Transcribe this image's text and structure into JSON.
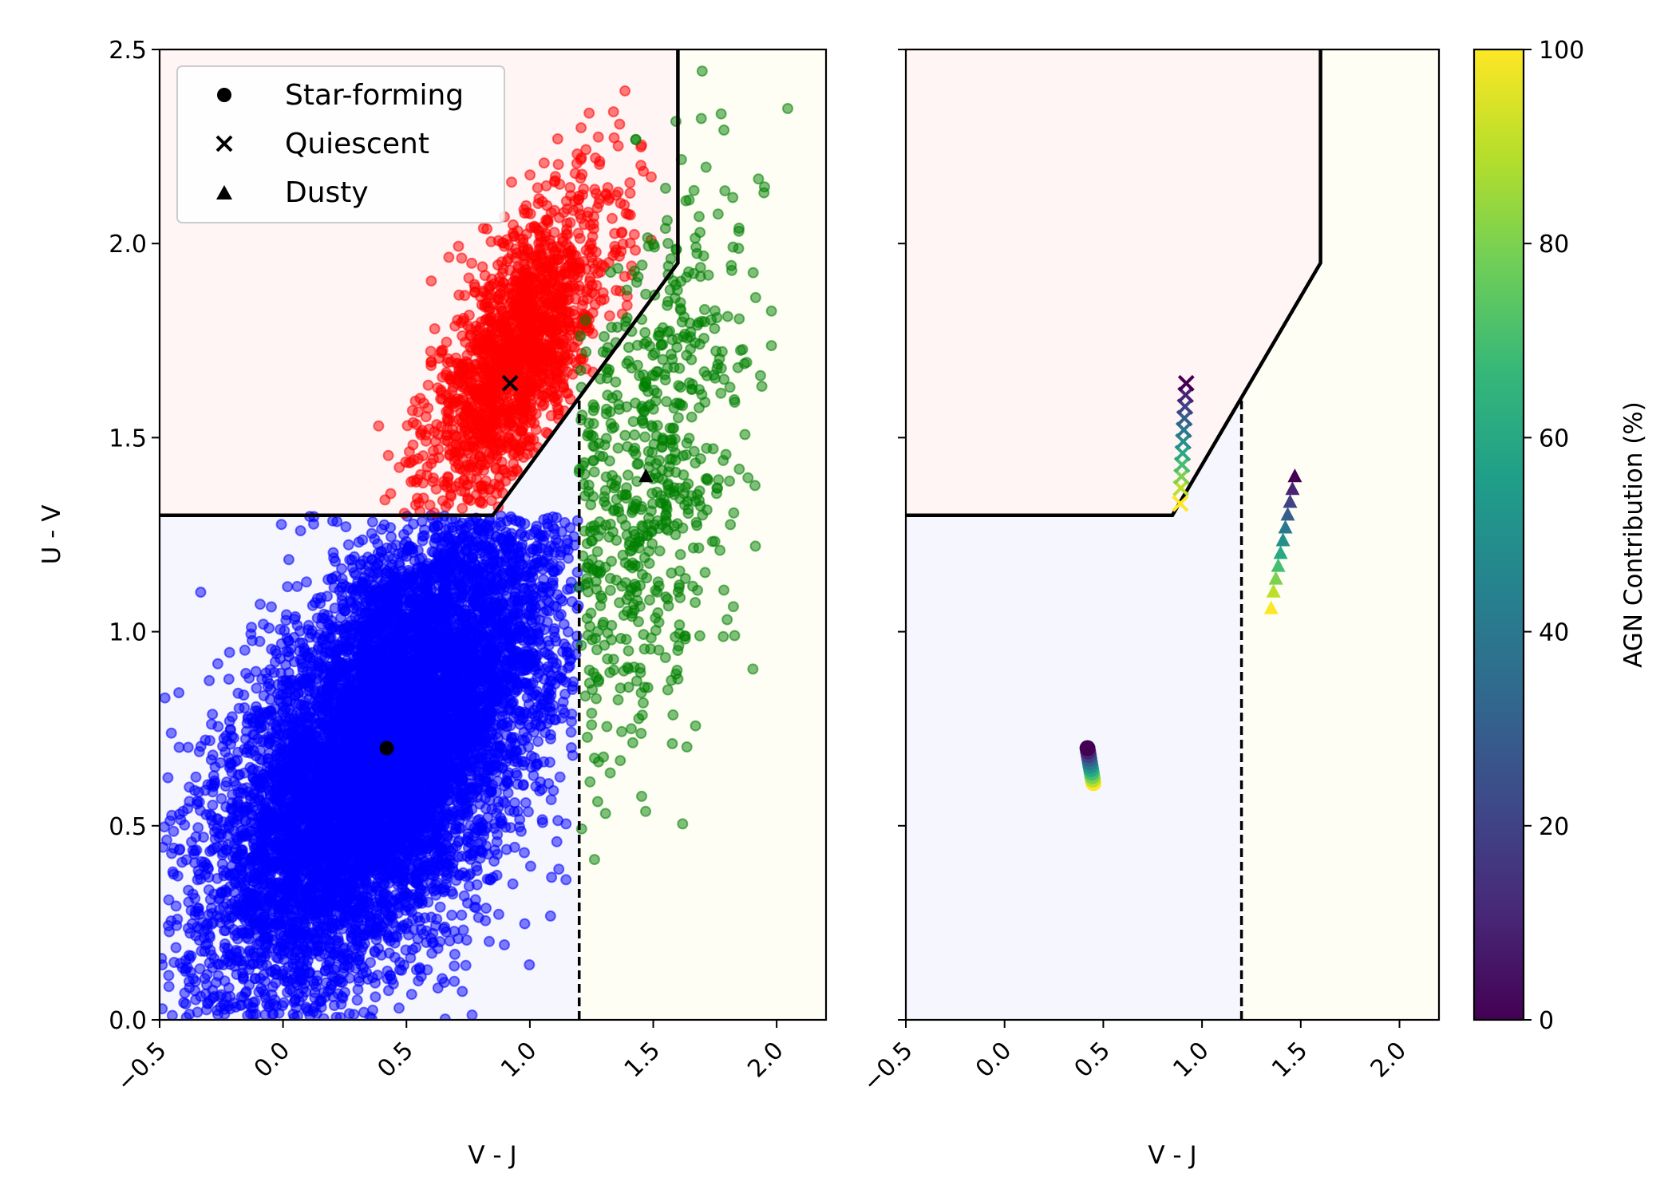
{
  "chart_data": [
    {
      "type": "scatter",
      "panel": "left",
      "xlabel": "V - J",
      "ylabel": "U - V",
      "xlim": [
        -0.5,
        2.2
      ],
      "ylim": [
        0,
        2.5
      ],
      "xticks": [
        "−0.5",
        "0.0",
        "0.5",
        "1.0",
        "1.5",
        "2.0"
      ],
      "xtick_values": [
        -0.5,
        0.0,
        0.5,
        1.0,
        1.5,
        2.0
      ],
      "yticks": [
        "0.0",
        "0.5",
        "1.0",
        "1.5",
        "2.0",
        "2.5"
      ],
      "ytick_values": [
        0.0,
        0.5,
        1.0,
        1.5,
        2.0,
        2.5
      ],
      "xtick_rotation": -45,
      "grid": false,
      "legend": {
        "placement": "top-left",
        "entries": [
          {
            "label": "Star-forming",
            "marker": "circle"
          },
          {
            "label": "Quiescent",
            "marker": "x"
          },
          {
            "label": "Dusty",
            "marker": "triangle"
          }
        ]
      },
      "regions": [
        {
          "class": "quiescent",
          "fill": "#fff5f5",
          "polygon": [
            [
              -0.5,
              1.3
            ],
            [
              0.85,
              1.3
            ],
            [
              1.6,
              1.95
            ],
            [
              1.6,
              2.5
            ],
            [
              -0.5,
              2.5
            ]
          ]
        },
        {
          "class": "star-forming",
          "fill": "#f5f6fe",
          "polygon": [
            [
              -0.5,
              0.0
            ],
            [
              1.2,
              0.0
            ],
            [
              1.2,
              1.603
            ],
            [
              0.85,
              1.3
            ],
            [
              -0.5,
              1.3
            ]
          ]
        },
        {
          "class": "dusty",
          "fill": "#fffef5",
          "polygon": [
            [
              1.2,
              0.0
            ],
            [
              2.2,
              0.0
            ],
            [
              2.2,
              2.5
            ],
            [
              1.6,
              2.5
            ],
            [
              1.6,
              1.95
            ],
            [
              1.2,
              1.603
            ]
          ]
        }
      ],
      "boundary_solid": [
        [
          -0.5,
          1.3
        ],
        [
          0.85,
          1.3
        ],
        [
          1.6,
          1.95
        ],
        [
          1.6,
          2.5
        ]
      ],
      "boundary_dashed": [
        [
          1.2,
          0.0
        ],
        [
          1.2,
          1.6
        ]
      ],
      "series": [
        {
          "name": "Star-forming",
          "color": "#0000ff",
          "count": 9000,
          "distribution": {
            "mean": [
              0.42,
              0.7
            ],
            "sd": [
              0.35,
              0.32
            ],
            "corr": 0.6
          },
          "bounds": {
            "x": [
              -0.5,
              1.2
            ],
            "y": [
              0.0,
              1.3
            ],
            "upper_edge": "boundary"
          }
        },
        {
          "name": "Quiescent",
          "color": "#ff0000",
          "count": 1700,
          "distribution": {
            "mean": [
              0.95,
              1.72
            ],
            "sd": [
              0.18,
              0.2
            ],
            "corr": 0.65
          },
          "bounds": {
            "x": [
              -0.5,
              1.6
            ],
            "y": [
              1.3,
              2.5
            ],
            "lower_edge": "boundary"
          }
        },
        {
          "name": "Dusty",
          "color": "#008000",
          "count": 650,
          "distribution": {
            "mean": [
              1.45,
              1.38
            ],
            "sd": [
              0.22,
              0.38
            ],
            "corr": 0.5
          },
          "bounds": {
            "x": [
              1.2,
              2.2
            ],
            "y": [
              0.05,
              2.45
            ]
          }
        }
      ],
      "centroids": [
        {
          "name": "Star-forming",
          "marker": "circle",
          "x": 0.42,
          "y": 0.7
        },
        {
          "name": "Quiescent",
          "marker": "x",
          "x": 0.92,
          "y": 1.64
        },
        {
          "name": "Dusty",
          "marker": "triangle",
          "x": 1.47,
          "y": 1.4
        }
      ]
    },
    {
      "type": "scatter",
      "panel": "right",
      "xlabel": "V - J",
      "ylabel": "",
      "xlim": [
        -0.5,
        2.2
      ],
      "ylim": [
        0,
        2.5
      ],
      "xticks": [
        "−0.5",
        "0.0",
        "0.5",
        "1.0",
        "1.5",
        "2.0"
      ],
      "xtick_values": [
        -0.5,
        0.0,
        0.5,
        1.0,
        1.5,
        2.0
      ],
      "ytick_values": [
        0.0,
        0.5,
        1.0,
        1.5,
        2.0,
        2.5
      ],
      "shared_y": true,
      "xtick_rotation": -45,
      "grid": false,
      "colorbar": {
        "label": "AGN Contribution (%)",
        "range": [
          0,
          100
        ],
        "ticks": [
          "0",
          "20",
          "40",
          "60",
          "80",
          "100"
        ],
        "tick_values": [
          0,
          20,
          40,
          60,
          80,
          100
        ],
        "colormap": "viridis",
        "stops": [
          "#440154",
          "#482878",
          "#3e4989",
          "#31688e",
          "#26828e",
          "#1f9e89",
          "#35b779",
          "#6ece58",
          "#b5de2b",
          "#fde725"
        ]
      },
      "tracks": [
        {
          "name": "Star-forming",
          "marker": "circle",
          "agn": [
            0,
            10,
            20,
            30,
            40,
            50,
            60,
            70,
            80,
            90,
            100
          ],
          "x": [
            0.42,
            0.423,
            0.426,
            0.429,
            0.432,
            0.435,
            0.438,
            0.441,
            0.444,
            0.447,
            0.45
          ],
          "y": [
            0.7,
            0.691,
            0.682,
            0.673,
            0.664,
            0.655,
            0.646,
            0.637,
            0.628,
            0.619,
            0.61
          ]
        },
        {
          "name": "Quiescent",
          "marker": "x",
          "agn": [
            0,
            10,
            20,
            30,
            40,
            50,
            60,
            70,
            80,
            90,
            100
          ],
          "x": [
            0.92,
            0.917,
            0.914,
            0.911,
            0.908,
            0.905,
            0.902,
            0.899,
            0.896,
            0.893,
            0.89
          ],
          "y": [
            1.64,
            1.61,
            1.58,
            1.55,
            1.52,
            1.49,
            1.46,
            1.43,
            1.4,
            1.37,
            1.33
          ]
        },
        {
          "name": "Dusty",
          "marker": "triangle",
          "agn": [
            0,
            10,
            20,
            30,
            40,
            50,
            60,
            70,
            80,
            90,
            100
          ],
          "x": [
            1.47,
            1.458,
            1.446,
            1.434,
            1.422,
            1.41,
            1.398,
            1.386,
            1.374,
            1.362,
            1.35
          ],
          "y": [
            1.4,
            1.367,
            1.334,
            1.301,
            1.268,
            1.235,
            1.202,
            1.169,
            1.136,
            1.103,
            1.06
          ]
        }
      ],
      "regions": [
        {
          "class": "quiescent",
          "fill": "#fff5f5",
          "polygon": [
            [
              -0.5,
              1.3
            ],
            [
              0.85,
              1.3
            ],
            [
              1.6,
              1.95
            ],
            [
              1.6,
              2.5
            ],
            [
              -0.5,
              2.5
            ]
          ]
        },
        {
          "class": "star-forming",
          "fill": "#f5f6fe",
          "polygon": [
            [
              -0.5,
              0.0
            ],
            [
              1.2,
              0.0
            ],
            [
              1.2,
              1.603
            ],
            [
              0.85,
              1.3
            ],
            [
              -0.5,
              1.3
            ]
          ]
        },
        {
          "class": "dusty",
          "fill": "#fffef5",
          "polygon": [
            [
              1.2,
              0.0
            ],
            [
              2.2,
              0.0
            ],
            [
              2.2,
              2.5
            ],
            [
              1.6,
              2.5
            ],
            [
              1.6,
              1.95
            ],
            [
              1.2,
              1.603
            ]
          ]
        }
      ],
      "boundary_solid": [
        [
          -0.5,
          1.3
        ],
        [
          0.85,
          1.3
        ],
        [
          1.6,
          1.95
        ],
        [
          1.6,
          2.5
        ]
      ],
      "boundary_dashed": [
        [
          1.2,
          0.0
        ],
        [
          1.2,
          1.6
        ]
      ]
    }
  ]
}
